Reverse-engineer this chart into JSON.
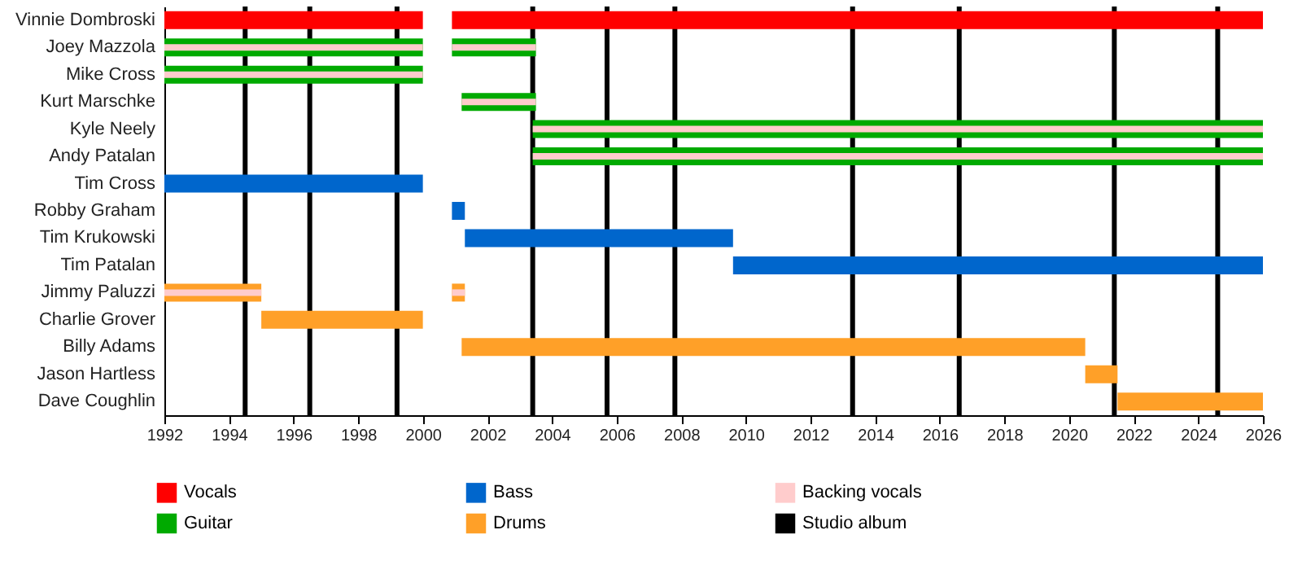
{
  "chart_data": {
    "type": "bar",
    "orientation": "horizontal",
    "categories": [
      "Vinnie Dombroski",
      "Joey Mazzola",
      "Mike Cross",
      "Kurt Marschke",
      "Kyle Neely",
      "Andy Patalan",
      "Tim Cross",
      "Robby Graham",
      "Tim Krukowski",
      "Tim Patalan",
      "Jimmy Paluzzi",
      "Charlie Grover",
      "Billy Adams",
      "Jason Hartless",
      "Dave Coughlin"
    ],
    "series": [
      {
        "name": "Vocals",
        "color": "#ff0000",
        "base": [
          1992,
          null,
          null,
          null,
          null,
          null,
          null,
          null,
          null,
          null,
          null,
          null,
          null,
          null,
          null
        ],
        "values": [
          8,
          null,
          null,
          null,
          null,
          null,
          null,
          null,
          null,
          null,
          null,
          null,
          null,
          null,
          null
        ]
      },
      {
        "color": "#ff0000",
        "base": [
          2000.9,
          null,
          null,
          null,
          null,
          null,
          null,
          null,
          null,
          null,
          null,
          null,
          null,
          null,
          null
        ],
        "values": [
          25.1,
          null,
          null,
          null,
          null,
          null,
          null,
          null,
          null,
          null,
          null,
          null,
          null,
          null,
          null
        ]
      },
      {
        "name": "Guitar",
        "color": "#00aa00",
        "base": [
          null,
          1992,
          1992,
          2001.2,
          2003.4,
          2003.4,
          null,
          null,
          null,
          null,
          null,
          null,
          null,
          null,
          null
        ],
        "values": [
          null,
          8,
          8,
          2.3,
          22.6,
          22.6,
          null,
          null,
          null,
          null,
          null,
          null,
          null,
          null,
          null
        ]
      },
      {
        "color": "#00aa00",
        "base": [
          null,
          2000.9,
          null,
          null,
          null,
          null,
          null,
          null,
          null,
          null,
          null,
          null,
          null,
          null,
          null
        ],
        "values": [
          null,
          2.6,
          null,
          null,
          null,
          null,
          null,
          null,
          null,
          null,
          null,
          null,
          null,
          null,
          null
        ]
      },
      {
        "name": "Bass",
        "color": "#0066cc",
        "base": [
          null,
          null,
          null,
          null,
          null,
          null,
          1992,
          2000.9,
          2001.3,
          2009.6,
          null,
          null,
          null,
          null,
          null
        ],
        "values": [
          null,
          null,
          null,
          null,
          null,
          null,
          8,
          0.4,
          8.3,
          16.4,
          null,
          null,
          null,
          null,
          null
        ]
      },
      {
        "name": "Drums",
        "color": "#ffa028",
        "base": [
          null,
          null,
          null,
          null,
          null,
          null,
          null,
          null,
          null,
          null,
          1992,
          1995,
          2001.2,
          2020.5,
          2021.5
        ],
        "values": [
          null,
          null,
          null,
          null,
          null,
          null,
          null,
          null,
          null,
          null,
          3,
          5,
          19.3,
          1,
          4.5
        ]
      },
      {
        "color": "#ffa028",
        "base": [
          null,
          null,
          null,
          null,
          null,
          null,
          null,
          null,
          null,
          null,
          2000.9,
          null,
          null,
          null,
          null
        ],
        "values": [
          null,
          null,
          null,
          null,
          null,
          null,
          null,
          null,
          null,
          null,
          0.4,
          null,
          null,
          null,
          null
        ]
      },
      {
        "name": "Backing vocals",
        "color": "#ffcccc",
        "base": [
          null,
          1992,
          1992,
          2001.2,
          2003.4,
          2003.4,
          null,
          null,
          null,
          null,
          1992,
          null,
          null,
          null,
          null
        ],
        "values": [
          null,
          8,
          8,
          2.3,
          22.6,
          22.6,
          null,
          null,
          null,
          null,
          3,
          null,
          null,
          null,
          null
        ]
      },
      {
        "color": "#ffcccc",
        "base": [
          null,
          2000.9,
          null,
          null,
          null,
          null,
          null,
          null,
          null,
          null,
          2000.9,
          null,
          null,
          null,
          null
        ],
        "values": [
          null,
          2.6,
          null,
          null,
          null,
          null,
          null,
          null,
          null,
          null,
          0.4,
          null,
          null,
          null,
          null
        ]
      }
    ],
    "ref_lines": [
      {
        "axis": "x",
        "value": 1994.5,
        "label": "Studio album",
        "color": "#000000"
      },
      {
        "axis": "x",
        "value": 1996.5,
        "color": "#000000"
      },
      {
        "axis": "x",
        "value": 1999.2,
        "color": "#000000"
      },
      {
        "axis": "x",
        "value": 2003.4,
        "color": "#000000"
      },
      {
        "axis": "x",
        "value": 2005.7,
        "color": "#000000"
      },
      {
        "axis": "x",
        "value": 2007.8,
        "color": "#000000"
      },
      {
        "axis": "x",
        "value": 2013.3,
        "color": "#000000"
      },
      {
        "axis": "x",
        "value": 2016.6,
        "color": "#000000"
      },
      {
        "axis": "x",
        "value": 2021.4,
        "color": "#000000"
      },
      {
        "axis": "x",
        "value": 2024.6,
        "color": "#000000"
      }
    ],
    "xlim": [
      1992,
      2026
    ],
    "xticks": [
      1992,
      1994,
      1996,
      1998,
      2000,
      2002,
      2004,
      2006,
      2008,
      2010,
      2012,
      2014,
      2016,
      2018,
      2020,
      2022,
      2024,
      2026
    ],
    "grid": false,
    "legend": "bottom left"
  }
}
